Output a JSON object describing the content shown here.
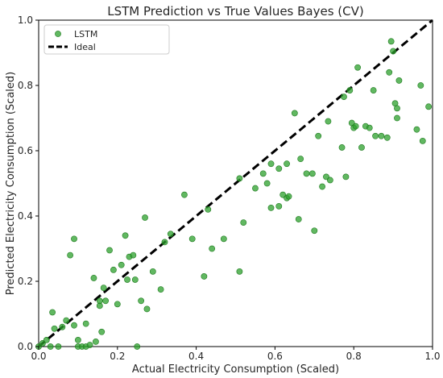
{
  "chart_data": {
    "type": "scatter",
    "title": "LSTM Prediction vs True Values Bayes (CV)",
    "xlabel": "Actual Electricity Consumption (Scaled)",
    "ylabel": "Predicted Electricity Consumption (Scaled)",
    "xlim": [
      0.0,
      1.0
    ],
    "ylim": [
      0.0,
      1.0
    ],
    "xticks": [
      "0.0",
      "0.2",
      "0.4",
      "0.6",
      "0.8",
      "1.0"
    ],
    "yticks": [
      "0.0",
      "0.2",
      "0.4",
      "0.6",
      "0.8",
      "1.0"
    ],
    "grid": false,
    "legend_position": "top-left",
    "series": [
      {
        "name": "LSTM",
        "kind": "scatter",
        "color": "#2ca02c",
        "points": [
          [
            0.0,
            0.0
          ],
          [
            0.01,
            0.01
          ],
          [
            0.02,
            0.02
          ],
          [
            0.03,
            0.0
          ],
          [
            0.04,
            0.055
          ],
          [
            0.035,
            0.105
          ],
          [
            0.05,
            0.0
          ],
          [
            0.06,
            0.06
          ],
          [
            0.07,
            0.08
          ],
          [
            0.08,
            0.28
          ],
          [
            0.09,
            0.33
          ],
          [
            0.09,
            0.065
          ],
          [
            0.1,
            0.02
          ],
          [
            0.1,
            0.0
          ],
          [
            0.11,
            0.0
          ],
          [
            0.12,
            0.07
          ],
          [
            0.12,
            0.0
          ],
          [
            0.13,
            0.005
          ],
          [
            0.14,
            0.21
          ],
          [
            0.145,
            0.015
          ],
          [
            0.155,
            0.125
          ],
          [
            0.155,
            0.14
          ],
          [
            0.16,
            0.045
          ],
          [
            0.165,
            0.18
          ],
          [
            0.17,
            0.14
          ],
          [
            0.18,
            0.295
          ],
          [
            0.19,
            0.235
          ],
          [
            0.2,
            0.13
          ],
          [
            0.21,
            0.25
          ],
          [
            0.22,
            0.34
          ],
          [
            0.225,
            0.205
          ],
          [
            0.23,
            0.275
          ],
          [
            0.24,
            0.28
          ],
          [
            0.245,
            0.205
          ],
          [
            0.25,
            0.0
          ],
          [
            0.26,
            0.14
          ],
          [
            0.27,
            0.395
          ],
          [
            0.275,
            0.115
          ],
          [
            0.29,
            0.23
          ],
          [
            0.31,
            0.175
          ],
          [
            0.32,
            0.32
          ],
          [
            0.335,
            0.345
          ],
          [
            0.37,
            0.465
          ],
          [
            0.39,
            0.33
          ],
          [
            0.42,
            0.215
          ],
          [
            0.43,
            0.42
          ],
          [
            0.44,
            0.3
          ],
          [
            0.47,
            0.33
          ],
          [
            0.51,
            0.23
          ],
          [
            0.51,
            0.515
          ],
          [
            0.52,
            0.38
          ],
          [
            0.55,
            0.485
          ],
          [
            0.57,
            0.53
          ],
          [
            0.58,
            0.5
          ],
          [
            0.59,
            0.56
          ],
          [
            0.59,
            0.425
          ],
          [
            0.61,
            0.43
          ],
          [
            0.61,
            0.545
          ],
          [
            0.62,
            0.465
          ],
          [
            0.63,
            0.455
          ],
          [
            0.63,
            0.56
          ],
          [
            0.635,
            0.46
          ],
          [
            0.65,
            0.715
          ],
          [
            0.66,
            0.39
          ],
          [
            0.665,
            0.575
          ],
          [
            0.68,
            0.53
          ],
          [
            0.695,
            0.53
          ],
          [
            0.7,
            0.355
          ],
          [
            0.71,
            0.645
          ],
          [
            0.72,
            0.49
          ],
          [
            0.73,
            0.52
          ],
          [
            0.735,
            0.69
          ],
          [
            0.74,
            0.51
          ],
          [
            0.77,
            0.61
          ],
          [
            0.775,
            0.765
          ],
          [
            0.78,
            0.52
          ],
          [
            0.79,
            0.785
          ],
          [
            0.795,
            0.685
          ],
          [
            0.8,
            0.67
          ],
          [
            0.805,
            0.675
          ],
          [
            0.81,
            0.855
          ],
          [
            0.82,
            0.61
          ],
          [
            0.83,
            0.675
          ],
          [
            0.84,
            0.67
          ],
          [
            0.85,
            0.785
          ],
          [
            0.855,
            0.645
          ],
          [
            0.87,
            0.645
          ],
          [
            0.885,
            0.64
          ],
          [
            0.89,
            0.84
          ],
          [
            0.895,
            0.935
          ],
          [
            0.9,
            0.905
          ],
          [
            0.905,
            0.745
          ],
          [
            0.91,
            0.7
          ],
          [
            0.91,
            0.73
          ],
          [
            0.915,
            0.815
          ],
          [
            0.96,
            0.665
          ],
          [
            0.97,
            0.8
          ],
          [
            0.975,
            0.63
          ],
          [
            0.99,
            0.735
          ]
        ]
      },
      {
        "name": "Ideal",
        "kind": "line",
        "style": "dashed",
        "color": "#000000",
        "points": [
          [
            0.0,
            0.0
          ],
          [
            1.0,
            1.0
          ]
        ]
      }
    ]
  }
}
